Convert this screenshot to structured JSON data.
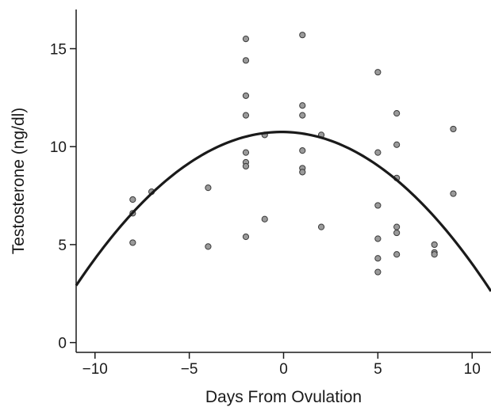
{
  "chart_data": {
    "type": "scatter",
    "xlabel": "Days From Ovulation",
    "ylabel": "Testosterone (ng/dl)",
    "xlim": [
      -11,
      11
    ],
    "ylim": [
      -0.5,
      17
    ],
    "x_ticks": [
      -10,
      -5,
      0,
      5,
      10
    ],
    "x_tick_labels": [
      "−10",
      "−5",
      "0",
      "5",
      "10"
    ],
    "y_ticks": [
      0,
      5,
      10,
      15
    ],
    "y_tick_labels": [
      "0",
      "5",
      "10",
      "15"
    ],
    "grid": false,
    "legend": "none",
    "series": [
      {
        "kind": "points",
        "color": "#9a9a9a",
        "points": [
          {
            "x": -8,
            "y": 7.3
          },
          {
            "x": -8,
            "y": 6.6
          },
          {
            "x": -8,
            "y": 5.1
          },
          {
            "x": -7,
            "y": 7.7
          },
          {
            "x": -4,
            "y": 7.9
          },
          {
            "x": -4,
            "y": 4.9
          },
          {
            "x": -2,
            "y": 15.5
          },
          {
            "x": -2,
            "y": 14.4
          },
          {
            "x": -2,
            "y": 12.6
          },
          {
            "x": -2,
            "y": 11.6
          },
          {
            "x": -2,
            "y": 9.7
          },
          {
            "x": -2,
            "y": 9.2
          },
          {
            "x": -2,
            "y": 9.0
          },
          {
            "x": -2,
            "y": 5.4
          },
          {
            "x": -1,
            "y": 10.6
          },
          {
            "x": -1,
            "y": 6.3
          },
          {
            "x": 1,
            "y": 15.7
          },
          {
            "x": 1,
            "y": 12.1
          },
          {
            "x": 1,
            "y": 11.6
          },
          {
            "x": 1,
            "y": 9.8
          },
          {
            "x": 1,
            "y": 8.9
          },
          {
            "x": 1,
            "y": 8.7
          },
          {
            "x": 2,
            "y": 10.6
          },
          {
            "x": 2,
            "y": 5.9
          },
          {
            "x": 5,
            "y": 13.8
          },
          {
            "x": 5,
            "y": 9.7
          },
          {
            "x": 5,
            "y": 7.0
          },
          {
            "x": 5,
            "y": 5.3
          },
          {
            "x": 5,
            "y": 4.3
          },
          {
            "x": 5,
            "y": 3.6
          },
          {
            "x": 6,
            "y": 11.7
          },
          {
            "x": 6,
            "y": 10.1
          },
          {
            "x": 6,
            "y": 8.4
          },
          {
            "x": 6,
            "y": 5.9
          },
          {
            "x": 6,
            "y": 5.6
          },
          {
            "x": 6,
            "y": 4.5
          },
          {
            "x": 8,
            "y": 5.0
          },
          {
            "x": 8,
            "y": 4.6
          },
          {
            "x": 8,
            "y": 4.5
          },
          {
            "x": 9,
            "y": 10.9
          },
          {
            "x": 9,
            "y": 7.6
          }
        ]
      },
      {
        "kind": "quadratic-fit",
        "color": "#1a1a1a",
        "peak_x": -0.1,
        "peak_y": 10.75,
        "curvature": -0.066
      }
    ]
  }
}
